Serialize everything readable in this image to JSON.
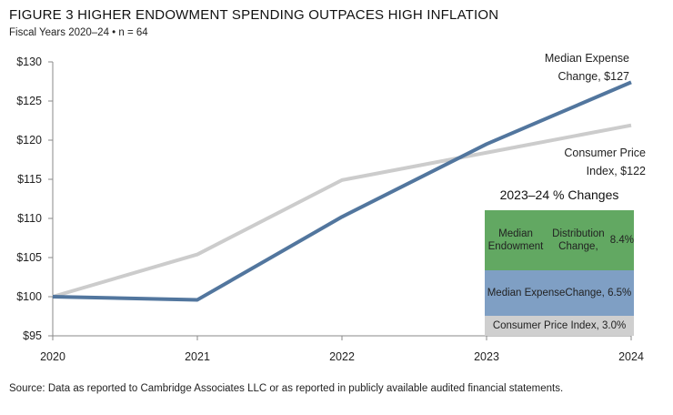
{
  "header": {
    "title": "FIGURE 3   HIGHER ENDOWMENT SPENDING OUTPACES HIGH INFLATION",
    "subtitle": "Fiscal Years 2020–24 • n = 64"
  },
  "footer": {
    "source": "Source: Data as reported to Cambridge Associates LLC or as reported in publicly available audited financial statements."
  },
  "chart_data": {
    "type": "line",
    "title": "HIGHER ENDOWMENT SPENDING OUTPACES HIGH INFLATION",
    "subtitle": "Fiscal Years 2020–24 • n = 64",
    "x": [
      "2020",
      "2021",
      "2022",
      "2023",
      "2024"
    ],
    "y_ticks": [
      "$95",
      "$100",
      "$105",
      "$110",
      "$115",
      "$120",
      "$125",
      "$130"
    ],
    "ylim": [
      95,
      130
    ],
    "xlabel": "",
    "ylabel": "",
    "grid": false,
    "series": [
      {
        "name": "Consumer Price Index",
        "color": "#cccccc",
        "values": [
          100,
          105.4,
          114.9,
          118.4,
          121.9
        ],
        "label_lines": [
          "Consumer Price",
          "Index, $122"
        ]
      },
      {
        "name": "Median Expense Change",
        "color": "#52769e",
        "values": [
          100,
          99.6,
          110.2,
          119.5,
          127.4
        ],
        "label_lines": [
          "Median Expense",
          "Change, $127"
        ]
      }
    ],
    "inset": {
      "title": "2023–24 % Changes",
      "type": "stacked-bar",
      "segments": [
        {
          "label": "Median Endowment Distribution Change, 8.4%",
          "lines": [
            "Median Endowment",
            "Distribution Change,",
            "8.4%"
          ],
          "value": 8.4,
          "color": "#62a862"
        },
        {
          "label": "Median Expense Change, 6.5%",
          "lines": [
            "Median Expense",
            "Change, 6.5%"
          ],
          "value": 6.5,
          "color": "#7f9fc4"
        },
        {
          "label": "Consumer Price Index, 3.0%",
          "lines": [
            "Consumer Price Index, 3.0%"
          ],
          "value": 3.0,
          "color": "#cfcfcf"
        }
      ]
    }
  }
}
